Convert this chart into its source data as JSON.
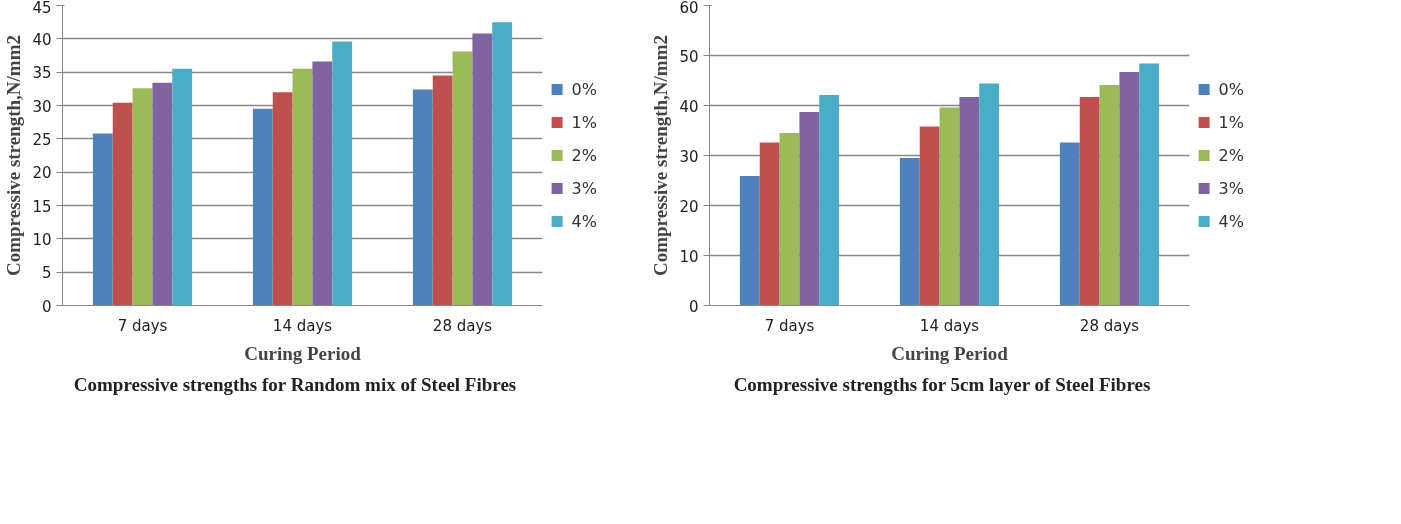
{
  "chart_data": [
    {
      "type": "bar",
      "xlabel": "Curing Period",
      "ylabel": "Compressive strength,N/mm2",
      "annotations": [
        "Compressive strengths for Random mix of Steel Fibres"
      ],
      "categories": [
        "7 days",
        "14 days",
        "28 days"
      ],
      "ylim": [
        0,
        45
      ],
      "yticks": [
        0,
        5,
        10,
        15,
        20,
        25,
        30,
        35,
        40,
        45
      ],
      "grid": "y",
      "legend": "right",
      "series": [
        {
          "name": "0%",
          "color": "#4f81bd",
          "values": [
            25.8,
            29.5,
            32.4
          ]
        },
        {
          "name": "1%",
          "color": "#c0504d",
          "values": [
            30.4,
            32.0,
            34.5
          ]
        },
        {
          "name": "2%",
          "color": "#9bbb59",
          "values": [
            32.6,
            35.5,
            38.1
          ]
        },
        {
          "name": "3%",
          "color": "#8064a2",
          "values": [
            33.4,
            36.6,
            40.8
          ]
        },
        {
          "name": "4%",
          "color": "#4bacc6",
          "values": [
            35.5,
            39.6,
            42.5
          ]
        }
      ]
    },
    {
      "type": "bar",
      "xlabel": "Curing Period",
      "ylabel": "Compressive strength,N/mm2",
      "annotations": [
        "Compressive strengths for 5cm layer of Steel Fibres"
      ],
      "categories": [
        "7 days",
        "14 days",
        "28 days"
      ],
      "ylim": [
        0,
        60
      ],
      "yticks": [
        0,
        10,
        20,
        30,
        40,
        50,
        60
      ],
      "grid": "y",
      "legend": "right",
      "series": [
        {
          "name": "0%",
          "color": "#4f81bd",
          "values": [
            25.9,
            29.5,
            32.6
          ]
        },
        {
          "name": "1%",
          "color": "#c0504d",
          "values": [
            32.6,
            35.8,
            41.7
          ]
        },
        {
          "name": "2%",
          "color": "#9bbb59",
          "values": [
            34.5,
            39.6,
            44.1
          ]
        },
        {
          "name": "3%",
          "color": "#8064a2",
          "values": [
            38.7,
            41.7,
            46.7
          ]
        },
        {
          "name": "4%",
          "color": "#4bacc6",
          "values": [
            42.1,
            44.4,
            48.4
          ]
        }
      ]
    }
  ]
}
